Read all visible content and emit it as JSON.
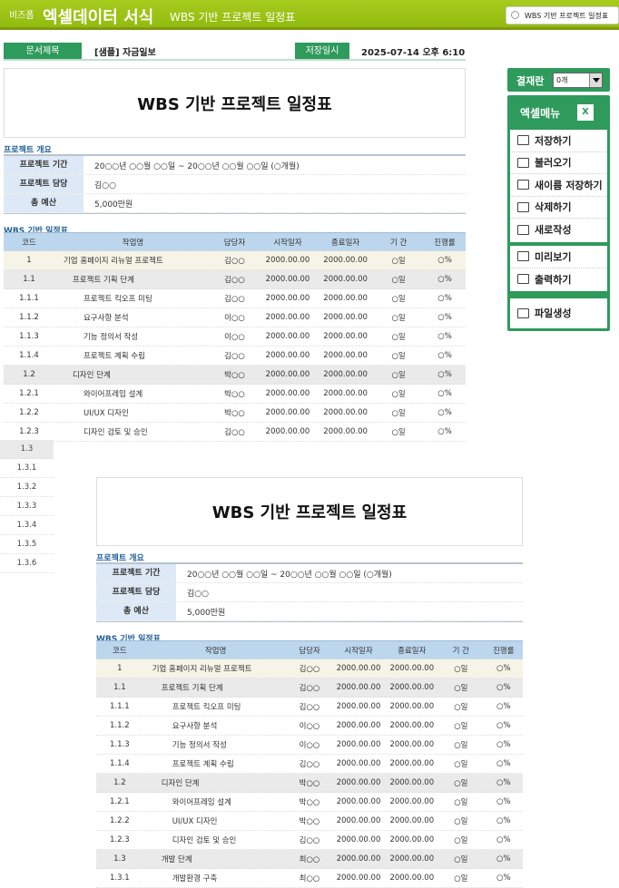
{
  "header": {
    "brand_small": "비즈폼",
    "brand": "엑셀데이터 서식",
    "subtitle": "WBS 기반 프로젝트 일정표",
    "search_value": "WBS 기반 프로젝트 일정표"
  },
  "info": {
    "doc_title_label": "문서제목",
    "doc_title": "[샘플] 자금일보",
    "saved_label": "저장일시",
    "saved_at": "2025-07-14  오후 6:10"
  },
  "sheet": {
    "title": "WBS 기반 프로젝트 일정표",
    "overview_heading": "프로젝트 개요",
    "overview": [
      {
        "k": "프로젝트 기간",
        "v": "20○○년 ○○월 ○○일 ~ 20○○년 ○○월 ○○일 (○개월)"
      },
      {
        "k": "프로젝트 담당",
        "v": "김○○"
      },
      {
        "k": "총 예산",
        "v": "5,000만원"
      }
    ],
    "wbs_heading": "WBS 기반 일정표",
    "columns": [
      "코드",
      "작업명",
      "담당자",
      "시작일자",
      "종료일자",
      "기 간",
      "진행률"
    ],
    "rows": [
      {
        "code": "1",
        "name": "기업 홈페이지 리뉴얼 프로젝트",
        "owner": "김○○",
        "start": "2000.00.00",
        "end": "2000.00.00",
        "dur": "○일",
        "rate": "○%",
        "level": 1
      },
      {
        "code": "1.1",
        "name": "프로젝트 기획 단계",
        "owner": "김○○",
        "start": "2000.00.00",
        "end": "2000.00.00",
        "dur": "○일",
        "rate": "○%",
        "level": 2
      },
      {
        "code": "1.1.1",
        "name": "프로젝트 킥오프 미팅",
        "owner": "김○○",
        "start": "2000.00.00",
        "end": "2000.00.00",
        "dur": "○일",
        "rate": "○%",
        "level": 3
      },
      {
        "code": "1.1.2",
        "name": "요구사항 분석",
        "owner": "이○○",
        "start": "2000.00.00",
        "end": "2000.00.00",
        "dur": "○일",
        "rate": "○%",
        "level": 3
      },
      {
        "code": "1.1.3",
        "name": "기능 정의서 작성",
        "owner": "이○○",
        "start": "2000.00.00",
        "end": "2000.00.00",
        "dur": "○일",
        "rate": "○%",
        "level": 3
      },
      {
        "code": "1.1.4",
        "name": "프로젝트 계획 수립",
        "owner": "김○○",
        "start": "2000.00.00",
        "end": "2000.00.00",
        "dur": "○일",
        "rate": "○%",
        "level": 3
      },
      {
        "code": "1.2",
        "name": "디자인 단계",
        "owner": "박○○",
        "start": "2000.00.00",
        "end": "2000.00.00",
        "dur": "○일",
        "rate": "○%",
        "level": 2
      },
      {
        "code": "1.2.1",
        "name": "와이어프레임 설계",
        "owner": "박○○",
        "start": "2000.00.00",
        "end": "2000.00.00",
        "dur": "○일",
        "rate": "○%",
        "level": 3
      },
      {
        "code": "1.2.2",
        "name": "UI/UX 디자인",
        "owner": "박○○",
        "start": "2000.00.00",
        "end": "2000.00.00",
        "dur": "○일",
        "rate": "○%",
        "level": 3
      },
      {
        "code": "1.2.3",
        "name": "디자인 검토 및 승인",
        "owner": "김○○",
        "start": "2000.00.00",
        "end": "2000.00.00",
        "dur": "○일",
        "rate": "○%",
        "level": 3
      },
      {
        "code": "1.3",
        "name": "개발 단계",
        "owner": "최○○",
        "start": "2000.00.00",
        "end": "2000.00.00",
        "dur": "○일",
        "rate": "○%",
        "level": 2
      },
      {
        "code": "1.3.1",
        "name": "개발환경 구축",
        "owner": "최○○",
        "start": "2000.00.00",
        "end": "2000.00.00",
        "dur": "○일",
        "rate": "○%",
        "level": 3
      }
    ],
    "strip_codes": [
      "1.3",
      "1.3.1",
      "1.3.2",
      "1.3.3",
      "1.3.4",
      "1.3.5",
      "1.3.6"
    ]
  },
  "side": {
    "approval_label": "결재란",
    "approval_value": "0개",
    "menu_title": "엑셀메뉴",
    "excel_icon_text": "X",
    "groups": [
      [
        {
          "label": "저장하기",
          "icon": "save-icon"
        },
        {
          "label": "불러오기",
          "icon": "load-icon"
        },
        {
          "label": "새이름 저장하기",
          "icon": "save-as-icon"
        },
        {
          "label": "삭제하기",
          "icon": "trash-icon"
        },
        {
          "label": "새로작성",
          "icon": "new-doc-icon"
        }
      ],
      [
        {
          "label": "미리보기",
          "icon": "preview-icon"
        },
        {
          "label": "출력하기",
          "icon": "print-icon"
        }
      ],
      [
        {
          "label": "파일생성",
          "icon": "folder-icon"
        }
      ]
    ]
  },
  "colors": {
    "header": "#9dc41a",
    "accent": "#2e9a5c",
    "table_header": "#bcd6ee"
  }
}
